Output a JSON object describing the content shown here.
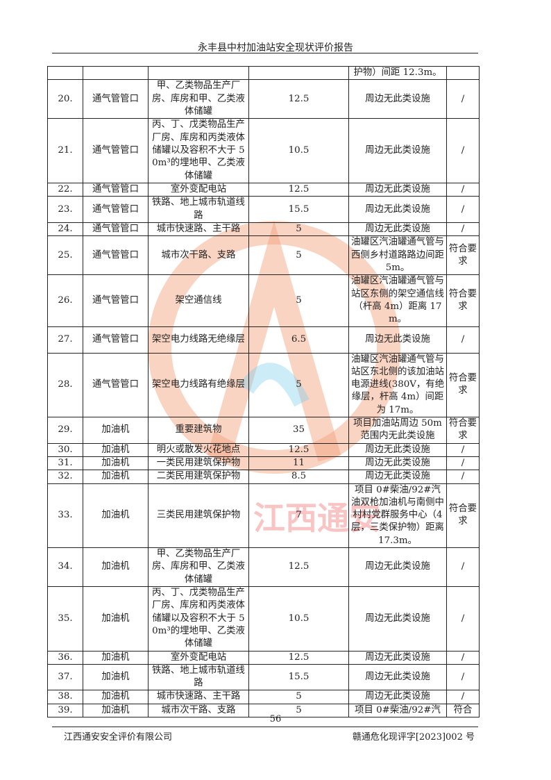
{
  "header": {
    "title": "永丰县中村加油站安全现状评价报告"
  },
  "watermark": {
    "text": "江西通安",
    "colors": {
      "ring": "#f2a07a",
      "text": "#f05a5a",
      "blue": "#7fd0ee"
    }
  },
  "table": {
    "rows": [
      {
        "no": "",
        "item": "",
        "object": "",
        "standard": "",
        "actual": "护物）间距 12.3m。",
        "result": ""
      },
      {
        "no": "20.",
        "item": "通气管管口",
        "object": "甲、乙类物品生产厂房、库房和甲、乙类液体储罐",
        "standard": "12.5",
        "actual": "周边无此类设施",
        "result": "/"
      },
      {
        "no": "21.",
        "item": "通气管管口",
        "object": "丙、丁、戊类物品生产厂房、库房和丙类液体储罐以及容积不大于 50m³的埋地甲、乙类液体储罐",
        "standard": "10.5",
        "actual": "周边无此类设施",
        "result": "/"
      },
      {
        "no": "22.",
        "item": "通气管管口",
        "object": "室外变配电站",
        "standard": "12.5",
        "actual": "周边无此类设施",
        "result": "/"
      },
      {
        "no": "23.",
        "item": "通气管管口",
        "object": "铁路、地上城市轨道线路",
        "standard": "15.5",
        "actual": "周边无此类设施",
        "result": "/"
      },
      {
        "no": "24.",
        "item": "通气管管口",
        "object": "城市快速路、主干路",
        "standard": "5",
        "actual": "周边无此类设施",
        "result": "/"
      },
      {
        "no": "25.",
        "item": "通气管管口",
        "object": "城市次干路、支路",
        "standard": "5",
        "actual": "油罐区汽油罐通气管与西侧乡村道路路边间距 5m。",
        "result": "符合要求"
      },
      {
        "no": "26.",
        "item": "通气管管口",
        "object": "架空通信线",
        "standard": "5",
        "actual": "油罐区汽油罐通气管与站区东侧的架空通信线（杆高 4m）距离 17m。",
        "result": "符合要求"
      },
      {
        "no": "27.",
        "item": "通气管管口",
        "object": "架空电力线路无绝缘层",
        "standard": "6.5",
        "actual": "周边无此类设施",
        "result": "/"
      },
      {
        "no": "28.",
        "item": "通气管管口",
        "object": "架空电力线路有绝缘层",
        "standard": "5",
        "actual": "油罐区汽油罐通气管与站区东北侧的该加油站电源进线(380V，有绝缘层，杆高 4m）间距为 17m。",
        "result": "符合要求"
      },
      {
        "no": "29.",
        "item": "加油机",
        "object": "重要建筑物",
        "standard": "35",
        "actual": "项目加油站周边 50m 范围内无此类设施",
        "result": "符合要求"
      },
      {
        "no": "30.",
        "item": "加油机",
        "object": "明火或散发火花地点",
        "standard": "12.5",
        "actual": "周边无此类设施",
        "result": "/"
      },
      {
        "no": "31.",
        "item": "加油机",
        "object": "一类民用建筑保护物",
        "standard": "11",
        "actual": "周边无此类设施",
        "result": "/"
      },
      {
        "no": "32.",
        "item": "加油机",
        "object": "二类民用建筑保护物",
        "standard": "8.5",
        "actual": "周边无此类设施",
        "result": "/"
      },
      {
        "no": "33.",
        "item": "加油机",
        "object": "三类民用建筑保护物",
        "standard": "7",
        "actual": "项目 0#柴油/92#汽油双枪加油机与南侧中村村党群服务中心（4层，三类保护物）距离 17.3m。",
        "result": "符合要求"
      },
      {
        "no": "34.",
        "item": "加油机",
        "object": "甲、乙类物品生产厂房、库房和甲、乙类液体储罐",
        "standard": "12.5",
        "actual": "周边无此类设施",
        "result": "/"
      },
      {
        "no": "35.",
        "item": "加油机",
        "object": "丙、丁、戊类物品生产厂房、库房和丙类液体储罐以及容积不大于 50m³的埋地甲、乙类液体储罐",
        "standard": "10.5",
        "actual": "周边无此类设施",
        "result": "/"
      },
      {
        "no": "36.",
        "item": "加油机",
        "object": "室外变配电站",
        "standard": "12.5",
        "actual": "周边无此类设施",
        "result": "/"
      },
      {
        "no": "37.",
        "item": "加油机",
        "object": "铁路、地上城市轨道线路",
        "standard": "15.5",
        "actual": "周边无此类设施",
        "result": "/"
      },
      {
        "no": "38.",
        "item": "加油机",
        "object": "城市快速路、主干路",
        "standard": "5",
        "actual": "周边无此类设施",
        "result": "/"
      },
      {
        "no": "39.",
        "item": "加油机",
        "object": "城市次干路、支路",
        "standard": "5",
        "actual": "项目 0#柴油/92#汽",
        "result": "符合"
      }
    ]
  },
  "footer": {
    "page": "56",
    "company": "江西通安安全评价有限公司",
    "doc_no": "赣通危化现评字[2023]002 号"
  }
}
